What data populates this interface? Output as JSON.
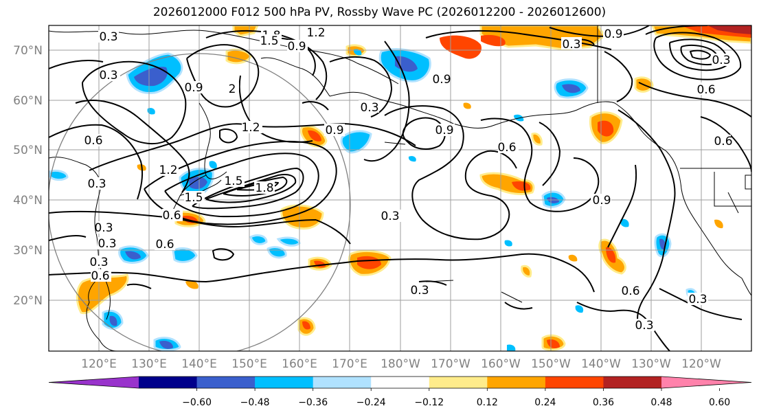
{
  "title": "2026012000 F012 500 hPa PV, Rossby Wave PC (2026012200 - 2026012600)",
  "lat_labels": [
    "70°N",
    "60°N",
    "50°N",
    "40°N",
    "30°N",
    "20°N"
  ],
  "lon_labels": [
    "120°E",
    "130°E",
    "140°E",
    "150°E",
    "160°E",
    "170°E",
    "180°W",
    "170°W",
    "160°W",
    "150°W",
    "140°W",
    "130°W",
    "120°W"
  ],
  "colorbar": {
    "ticks": [
      "−0.60",
      "−0.48",
      "−0.36",
      "−0.24",
      "−0.12",
      "0.12",
      "0.24",
      "0.36",
      "0.48",
      "0.60"
    ],
    "colors": [
      "#9933cc",
      "#00008b",
      "#3a5fcd",
      "#00bfff",
      "#b0e2ff",
      "#ffffff",
      "#ffec8b",
      "#ffa500",
      "#ff4500",
      "#b22222",
      "#ff82ab"
    ]
  },
  "contour_labels": [
    "0.3",
    "1.8",
    "1.5",
    "1.2",
    "0.9",
    "0.3",
    "0.3",
    "0.9",
    "2",
    "0.3",
    "0.9",
    "0.3",
    "0.6",
    "1.2",
    "0.9",
    "0.9",
    "0.6",
    "0.6",
    "1.2",
    "1.5",
    "1.5",
    "1.8",
    "0.6",
    "0.3",
    "0.9",
    "0.3",
    "0.6",
    "0.3",
    "0.6",
    "0.3",
    "0.3",
    "0.6",
    "0.3",
    "0.6",
    "0.3",
    "0.9",
    "0.3"
  ]
}
